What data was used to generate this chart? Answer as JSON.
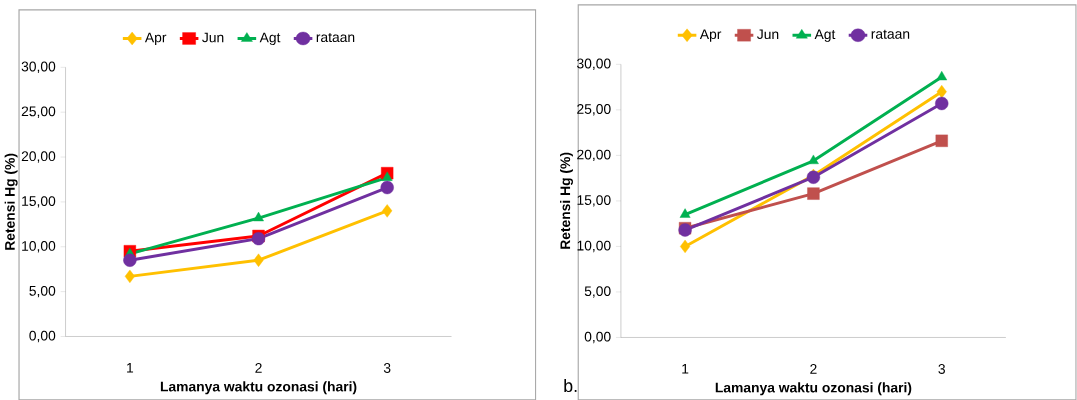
{
  "chart_data": [
    {
      "type": "line",
      "ylabel": "Retensi Hg (%)",
      "xlabel": "Lamanya waktu ozonasi (hari)",
      "categories": [
        "1",
        "2",
        "3"
      ],
      "ylim": [
        0,
        30
      ],
      "yticks": [
        {
          "value": 0,
          "label": "0,00"
        },
        {
          "value": 5,
          "label": "5,00"
        },
        {
          "value": 10,
          "label": "10,00"
        },
        {
          "value": 15,
          "label": "15,00"
        },
        {
          "value": 20,
          "label": "20,00"
        },
        {
          "value": 25,
          "label": "25,00"
        },
        {
          "value": 30,
          "label": "30,00"
        }
      ],
      "legend": "top",
      "grid": false,
      "series": [
        {
          "name": "Apr",
          "color": "#ffc000",
          "marker": "diamond",
          "values": [
            6.7,
            8.5,
            14.0
          ]
        },
        {
          "name": "Jun",
          "color": "#ff0000",
          "marker": "square",
          "values": [
            9.5,
            11.2,
            18.2
          ]
        },
        {
          "name": "Agt",
          "color": "#00b050",
          "marker": "triangle",
          "values": [
            9.2,
            13.2,
            17.7
          ]
        },
        {
          "name": "rataan",
          "color": "#7030a0",
          "marker": "circle",
          "values": [
            8.5,
            10.9,
            16.6
          ]
        }
      ]
    },
    {
      "type": "line",
      "ylabel": "Retensi Hg (%)",
      "xlabel": "Lamanya waktu ozonasi (hari)",
      "categories": [
        "1",
        "2",
        "3"
      ],
      "ylim": [
        0,
        30
      ],
      "yticks": [
        {
          "value": 0,
          "label": "0,00"
        },
        {
          "value": 5,
          "label": "5,00"
        },
        {
          "value": 10,
          "label": "10,00"
        },
        {
          "value": 15,
          "label": "15,00"
        },
        {
          "value": 20,
          "label": "20,00"
        },
        {
          "value": 25,
          "label": "25,00"
        },
        {
          "value": 30,
          "label": "30,00"
        }
      ],
      "legend": "top",
      "grid": false,
      "annotations": [
        "b."
      ],
      "series": [
        {
          "name": "Apr",
          "color": "#ffc000",
          "marker": "diamond",
          "values": [
            10.0,
            17.8,
            27.0
          ]
        },
        {
          "name": "Jun",
          "color": "#c0504d",
          "marker": "square",
          "values": [
            12.0,
            15.8,
            21.6
          ]
        },
        {
          "name": "Agt",
          "color": "#00b050",
          "marker": "triangle",
          "values": [
            13.5,
            19.4,
            28.6
          ]
        },
        {
          "name": "rataan",
          "color": "#7030a0",
          "marker": "circle",
          "values": [
            11.8,
            17.6,
            25.7
          ]
        }
      ]
    }
  ]
}
